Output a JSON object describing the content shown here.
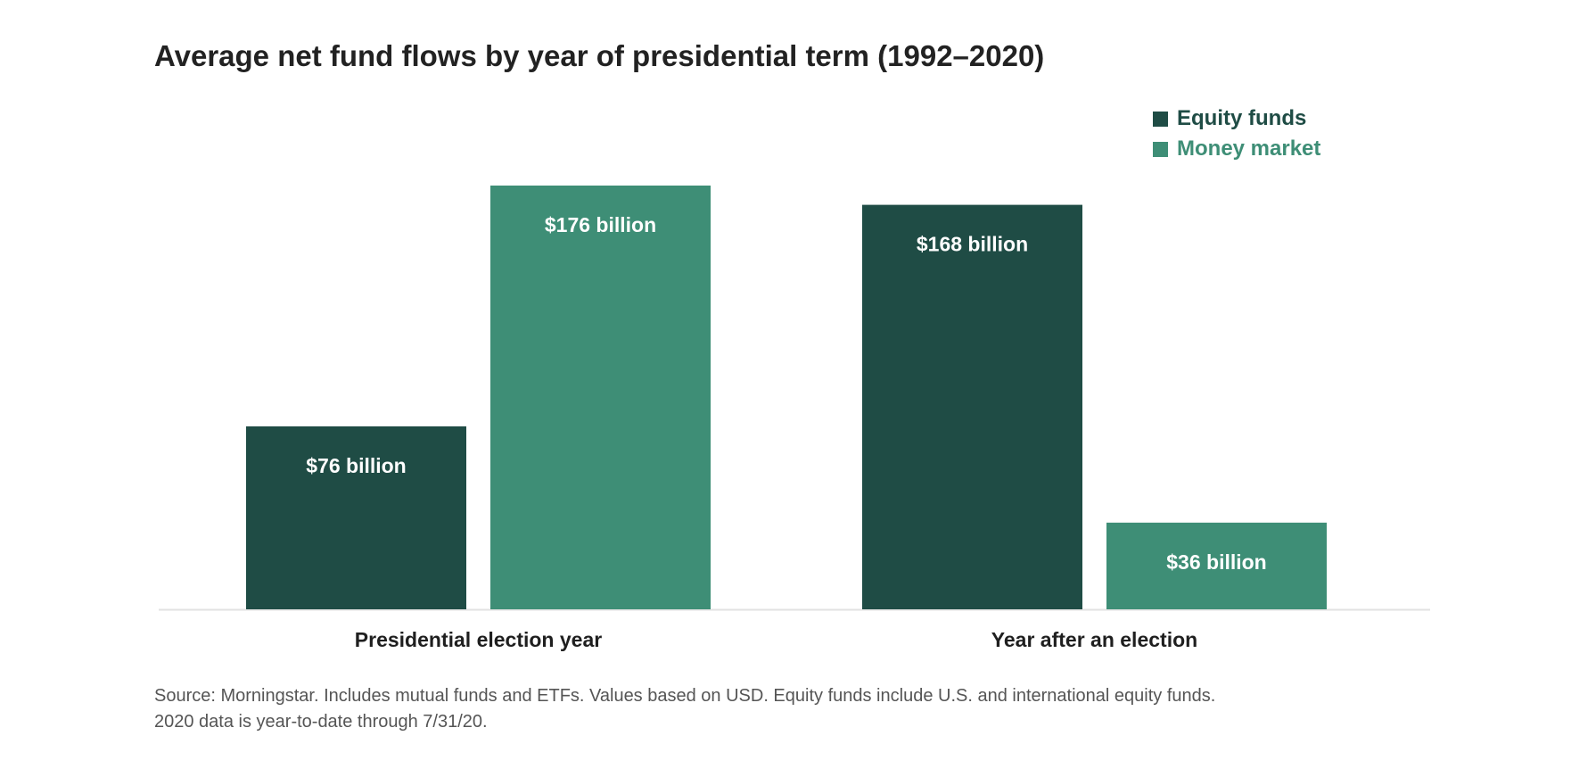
{
  "chart_data": {
    "type": "bar",
    "title": "Average net fund flows by year of presidential term (1992–2020)",
    "categories": [
      "Presidential election year",
      "Year after an election"
    ],
    "series": [
      {
        "name": "Equity funds",
        "color": "#1f4c45",
        "values": [
          76,
          168
        ],
        "labels": [
          "$76 billion",
          "$168 billion"
        ]
      },
      {
        "name": "Money market",
        "color": "#3e8e76",
        "values": [
          176,
          36
        ],
        "labels": [
          "$176 billion",
          "$36 billion"
        ]
      }
    ],
    "ylabel": "",
    "xlabel": "",
    "ylim": [
      0,
      176
    ],
    "grid": false,
    "legend_position": "top-right"
  },
  "footer": {
    "source_line1": "Source: Morningstar. Includes mutual funds and ETFs. Values based on USD. Equity funds include U.S. and international equity funds.",
    "source_line2": "2020 data is year-to-date through 7/31/20."
  }
}
